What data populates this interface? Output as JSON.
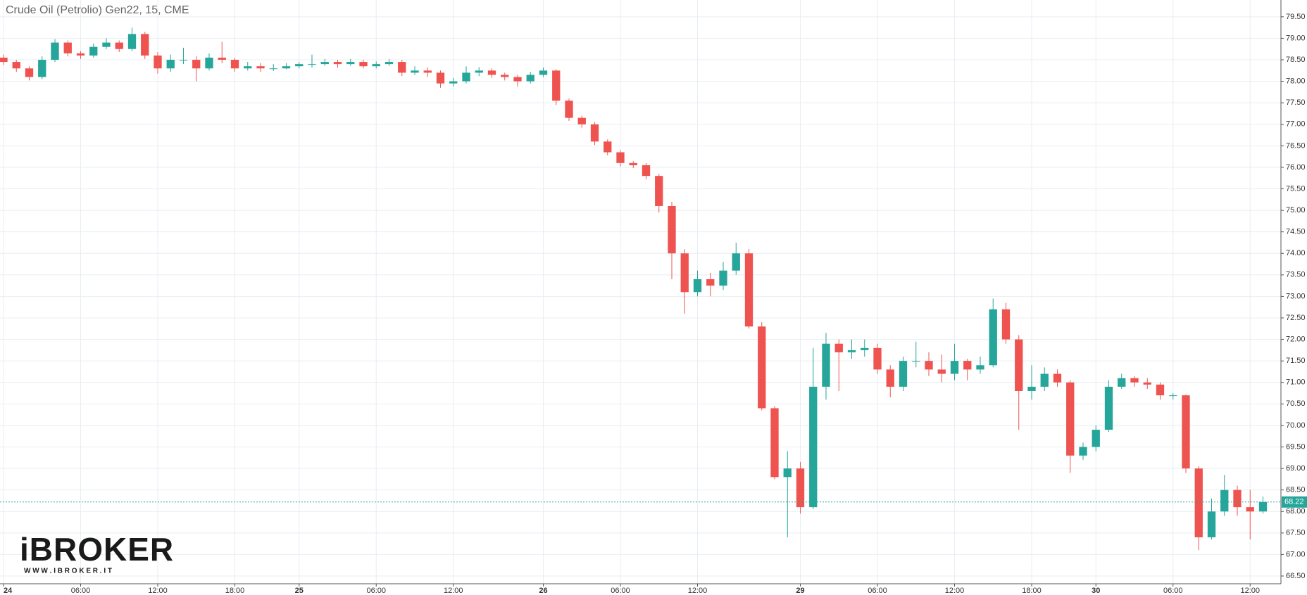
{
  "chart_data": {
    "type": "candlestick",
    "title": "Crude Oil (Petrolio) Gen22, 15, CME",
    "categories": [
      "24",
      null,
      null,
      null,
      null,
      null,
      "06:00",
      null,
      null,
      null,
      null,
      null,
      "12:00",
      null,
      null,
      null,
      null,
      null,
      "18:00",
      null,
      null,
      null,
      null,
      "25",
      null,
      null,
      null,
      null,
      null,
      "06:00",
      null,
      null,
      null,
      null,
      null,
      "12:00",
      null,
      null,
      null,
      null,
      null,
      null,
      "26",
      null,
      null,
      null,
      null,
      null,
      "06:00",
      null,
      null,
      null,
      null,
      null,
      "12:00",
      null,
      null,
      null,
      null,
      null,
      null,
      null,
      "29",
      null,
      null,
      null,
      null,
      null,
      "06:00",
      null,
      null,
      null,
      null,
      null,
      "12:00",
      null,
      null,
      null,
      null,
      null,
      "18:00",
      null,
      null,
      null,
      null,
      "30",
      null,
      null,
      null,
      null,
      null,
      "06:00",
      null,
      null,
      null,
      null,
      null,
      "12:00",
      null
    ],
    "open": [
      78.55,
      78.45,
      78.3,
      78.1,
      78.5,
      78.9,
      78.65,
      78.6,
      78.8,
      78.9,
      78.75,
      79.1,
      78.6,
      78.3,
      78.5,
      78.5,
      78.3,
      78.55,
      78.5,
      78.3,
      78.35,
      78.3,
      78.3,
      78.35,
      78.4,
      78.4,
      78.45,
      78.4,
      78.45,
      78.35,
      78.4,
      78.45,
      78.2,
      78.25,
      78.2,
      77.95,
      78.0,
      78.2,
      78.25,
      78.15,
      78.1,
      78.0,
      78.15,
      78.25,
      77.55,
      77.15,
      77.0,
      76.6,
      76.35,
      76.1,
      76.05,
      75.8,
      75.1,
      74.0,
      73.1,
      73.4,
      73.25,
      73.6,
      74.0,
      72.3,
      70.4,
      68.8,
      69.0,
      68.1,
      70.9,
      71.9,
      71.7,
      71.75,
      71.8,
      71.3,
      70.9,
      71.5,
      71.5,
      71.3,
      71.2,
      71.5,
      71.3,
      71.4,
      72.7,
      72.0,
      70.8,
      70.9,
      71.2,
      71.0,
      69.3,
      69.5,
      69.9,
      70.9,
      71.1,
      71.0,
      70.95,
      70.7,
      70.7,
      69.0,
      67.4,
      68.0,
      68.5,
      68.1,
      68.0
    ],
    "high": [
      78.62,
      78.5,
      78.35,
      78.58,
      78.98,
      78.95,
      78.7,
      78.88,
      79.0,
      78.95,
      79.25,
      79.15,
      78.68,
      78.62,
      78.78,
      78.58,
      78.65,
      78.92,
      78.55,
      78.45,
      78.42,
      78.4,
      78.42,
      78.45,
      78.62,
      78.52,
      78.5,
      78.52,
      78.5,
      78.46,
      78.52,
      78.5,
      78.35,
      78.32,
      78.25,
      78.08,
      78.35,
      78.33,
      78.3,
      78.2,
      78.15,
      78.22,
      78.32,
      78.28,
      77.6,
      77.2,
      77.05,
      76.65,
      76.4,
      76.15,
      76.1,
      75.85,
      75.2,
      74.1,
      73.6,
      73.55,
      73.8,
      74.25,
      74.1,
      72.4,
      70.45,
      69.4,
      69.15,
      71.8,
      72.15,
      72.0,
      72.0,
      72.0,
      71.9,
      71.4,
      71.6,
      71.95,
      71.7,
      71.65,
      71.9,
      71.55,
      71.6,
      72.95,
      72.85,
      72.1,
      71.4,
      71.35,
      71.3,
      71.05,
      69.6,
      70.0,
      71.05,
      71.2,
      71.15,
      71.1,
      71.0,
      70.75,
      70.72,
      69.05,
      68.3,
      68.85,
      68.6,
      68.5,
      68.35
    ],
    "low": [
      78.38,
      78.22,
      78.02,
      78.05,
      78.45,
      78.58,
      78.52,
      78.55,
      78.75,
      78.68,
      78.7,
      78.52,
      78.18,
      78.22,
      78.4,
      78.0,
      78.25,
      78.42,
      78.22,
      78.25,
      78.22,
      78.24,
      78.28,
      78.3,
      78.32,
      78.36,
      78.32,
      78.36,
      78.3,
      78.3,
      78.36,
      78.12,
      78.15,
      78.1,
      77.85,
      77.88,
      77.95,
      78.12,
      78.08,
      78.02,
      77.88,
      77.95,
      78.1,
      77.45,
      77.08,
      76.92,
      76.52,
      76.28,
      76.02,
      75.98,
      75.72,
      74.95,
      73.4,
      72.6,
      73.0,
      73.0,
      73.15,
      73.5,
      72.25,
      70.35,
      68.75,
      67.4,
      67.95,
      68.05,
      70.6,
      70.8,
      71.55,
      71.6,
      71.2,
      70.65,
      70.8,
      71.35,
      71.15,
      71.0,
      71.05,
      71.05,
      71.2,
      71.35,
      71.9,
      69.9,
      70.6,
      70.8,
      70.9,
      68.9,
      69.2,
      69.4,
      69.85,
      70.85,
      70.9,
      70.85,
      70.6,
      70.6,
      68.9,
      67.1,
      67.35,
      67.9,
      67.9,
      67.35,
      67.95
    ],
    "close": [
      78.45,
      78.3,
      78.1,
      78.5,
      78.9,
      78.65,
      78.6,
      78.8,
      78.9,
      78.75,
      79.1,
      78.6,
      78.3,
      78.5,
      78.5,
      78.3,
      78.55,
      78.5,
      78.3,
      78.35,
      78.3,
      78.3,
      78.35,
      78.4,
      78.4,
      78.45,
      78.4,
      78.45,
      78.35,
      78.4,
      78.45,
      78.2,
      78.25,
      78.2,
      77.95,
      78.0,
      78.2,
      78.25,
      78.15,
      78.1,
      78.0,
      78.15,
      78.25,
      77.55,
      77.15,
      77.0,
      76.6,
      76.35,
      76.1,
      76.05,
      75.8,
      75.1,
      74.0,
      73.1,
      73.4,
      73.25,
      73.6,
      74.0,
      72.3,
      70.4,
      68.8,
      69.0,
      68.1,
      70.9,
      71.9,
      71.7,
      71.75,
      71.8,
      71.3,
      70.9,
      71.5,
      71.5,
      71.3,
      71.2,
      71.5,
      71.3,
      71.4,
      72.7,
      72.0,
      70.8,
      70.9,
      71.2,
      71.0,
      69.3,
      69.5,
      69.9,
      70.9,
      71.1,
      71.0,
      70.95,
      70.7,
      70.7,
      69.0,
      67.4,
      68.0,
      68.5,
      68.1,
      68.0,
      68.22
    ],
    "up_color": "#26a69a",
    "down_color": "#ef5350",
    "last_price": 68.22,
    "ylim": [
      66.32,
      79.89
    ],
    "yticks": [
      {
        "value": 66.5,
        "label": "66.50"
      },
      {
        "value": 67,
        "label": "67.00"
      },
      {
        "value": 67.5,
        "label": "67.50"
      },
      {
        "value": 68,
        "label": "68.00"
      },
      {
        "value": 68.5,
        "label": "68.50"
      },
      {
        "value": 69,
        "label": "69.00"
      },
      {
        "value": 69.5,
        "label": "69.50"
      },
      {
        "value": 70,
        "label": "70.00"
      },
      {
        "value": 70.5,
        "label": "70.50"
      },
      {
        "value": 71,
        "label": "71.00"
      },
      {
        "value": 71.5,
        "label": "71.50"
      },
      {
        "value": 72,
        "label": "72.00"
      },
      {
        "value": 72.5,
        "label": "72.50"
      },
      {
        "value": 73,
        "label": "73.00"
      },
      {
        "value": 73.5,
        "label": "73.50"
      },
      {
        "value": 74,
        "label": "74.00"
      },
      {
        "value": 74.5,
        "label": "74.50"
      },
      {
        "value": 75,
        "label": "75.00"
      },
      {
        "value": 75.5,
        "label": "75.50"
      },
      {
        "value": 76,
        "label": "76.00"
      },
      {
        "value": 76.5,
        "label": "76.50"
      },
      {
        "value": 77,
        "label": "77.00"
      },
      {
        "value": 77.5,
        "label": "77.50"
      },
      {
        "value": 78,
        "label": "78.00"
      },
      {
        "value": 78.5,
        "label": "78.50"
      },
      {
        "value": 79,
        "label": "79.00"
      },
      {
        "value": 79.5,
        "label": "79.50"
      }
    ],
    "grid": true,
    "watermark": {
      "name": "iBROKER",
      "url": "W W W . I B R O K E R . I T"
    }
  }
}
